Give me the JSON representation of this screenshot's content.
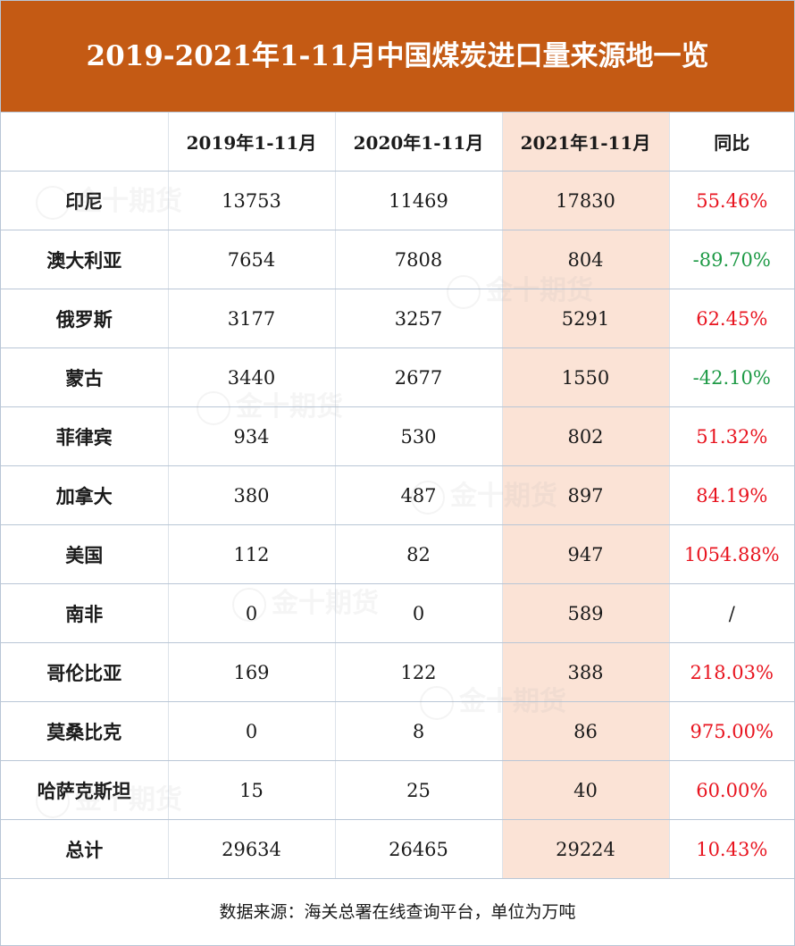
{
  "title": "2019-2021年1-11月中国煤炭进口量来源地一览",
  "headers": [
    "",
    "2019年1-11月",
    "2020年1-11月",
    "2021年1-11月",
    "同比"
  ],
  "rows": [
    {
      "country": "印尼",
      "y2019": "13753",
      "y2020": "11469",
      "y2021": "17830",
      "yoy": "55.46%",
      "trend": "up"
    },
    {
      "country": "澳大利亚",
      "y2019": "7654",
      "y2020": "7808",
      "y2021": "804",
      "yoy": "-89.70%",
      "trend": "down"
    },
    {
      "country": "俄罗斯",
      "y2019": "3177",
      "y2020": "3257",
      "y2021": "5291",
      "yoy": "62.45%",
      "trend": "up"
    },
    {
      "country": "蒙古",
      "y2019": "3440",
      "y2020": "2677",
      "y2021": "1550",
      "yoy": "-42.10%",
      "trend": "down"
    },
    {
      "country": "菲律宾",
      "y2019": "934",
      "y2020": "530",
      "y2021": "802",
      "yoy": "51.32%",
      "trend": "up"
    },
    {
      "country": "加拿大",
      "y2019": "380",
      "y2020": "487",
      "y2021": "897",
      "yoy": "84.19%",
      "trend": "up"
    },
    {
      "country": "美国",
      "y2019": "112",
      "y2020": "82",
      "y2021": "947",
      "yoy": "1054.88%",
      "trend": "up"
    },
    {
      "country": "南非",
      "y2019": "0",
      "y2020": "0",
      "y2021": "589",
      "yoy": "/",
      "trend": "none"
    },
    {
      "country": "哥伦比亚",
      "y2019": "169",
      "y2020": "122",
      "y2021": "388",
      "yoy": "218.03%",
      "trend": "up"
    },
    {
      "country": "莫桑比克",
      "y2019": "0",
      "y2020": "8",
      "y2021": "86",
      "yoy": "975.00%",
      "trend": "up"
    },
    {
      "country": "哈萨克斯坦",
      "y2019": "15",
      "y2020": "25",
      "y2021": "40",
      "yoy": "60.00%",
      "trend": "up"
    },
    {
      "country": "总计",
      "y2019": "29634",
      "y2020": "26465",
      "y2021": "29224",
      "yoy": "10.43%",
      "trend": "up"
    }
  ],
  "footer": "数据来源：海关总署在线查询平台，单位为万吨",
  "watermark": "金十期货",
  "colors": {
    "title_bg": "#c45a14",
    "highlight_col": "#fbe3d6",
    "positive": "#e8141f",
    "negative": "#1e9a46"
  }
}
